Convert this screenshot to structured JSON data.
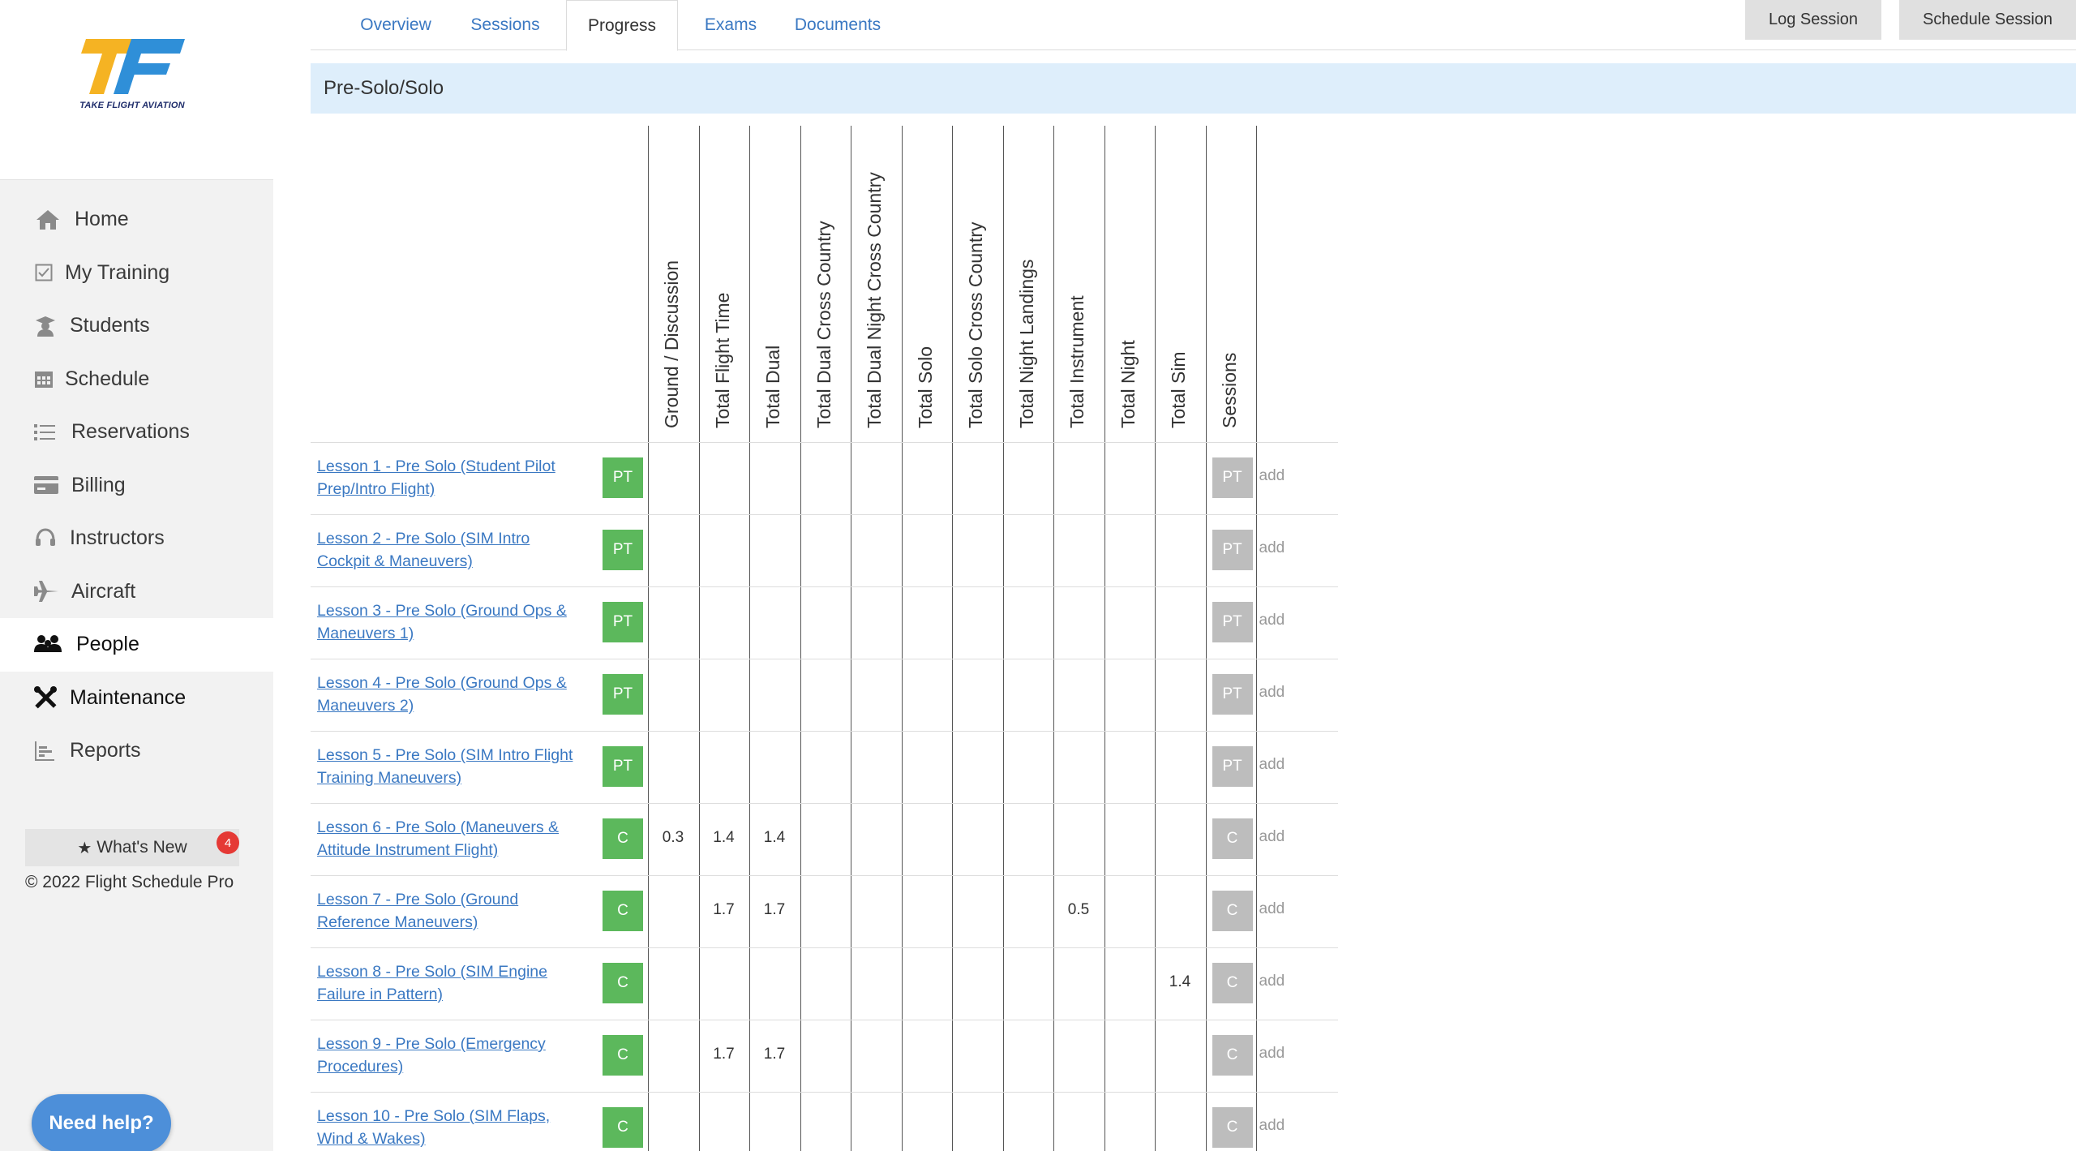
{
  "brand": {
    "logo_text": "TAKE FLIGHT AVIATION",
    "colors": {
      "gold": "#f5b323",
      "blue": "#2f8fd8"
    }
  },
  "sidebar": {
    "items": [
      {
        "label": "Home",
        "icon": "home-icon"
      },
      {
        "label": "My Training",
        "icon": "checkbox-icon"
      },
      {
        "label": "Students",
        "icon": "student-icon"
      },
      {
        "label": "Schedule",
        "icon": "calendar-icon"
      },
      {
        "label": "Reservations",
        "icon": "list-icon"
      },
      {
        "label": "Billing",
        "icon": "billing-card-icon"
      },
      {
        "label": "Instructors",
        "icon": "headset-icon"
      },
      {
        "label": "Aircraft",
        "icon": "airplane-icon"
      },
      {
        "label": "People",
        "icon": "people-icon",
        "active": true
      },
      {
        "label": "Maintenance",
        "icon": "tools-icon"
      },
      {
        "label": "Reports",
        "icon": "bar-chart-icon"
      }
    ],
    "whats_new": {
      "label": "What's New",
      "badge": "4"
    },
    "copyright": "© 2022 Flight Schedule Pro",
    "help": "Need help?"
  },
  "tabs": [
    {
      "label": "Overview"
    },
    {
      "label": "Sessions"
    },
    {
      "label": "Progress",
      "active": true
    },
    {
      "label": "Exams"
    },
    {
      "label": "Documents"
    }
  ],
  "actions": {
    "log_session": "Log Session",
    "schedule_session": "Schedule Session"
  },
  "section": {
    "title": "Pre-Solo/Solo"
  },
  "table": {
    "columns": [
      "Ground / Discussion",
      "Total Flight Time",
      "Total Dual",
      "Total Dual Cross Country",
      "Total Dual Night Cross Country",
      "Total Solo",
      "Total Solo Cross Country",
      "Total Night Landings",
      "Total Instrument",
      "Total Night",
      "Total Sim",
      "Sessions"
    ],
    "add_label": "add",
    "rows": [
      {
        "lesson": "Lesson 1 - Pre Solo (Student Pilot Prep/Intro Flight)",
        "status": "PT",
        "session": "PT",
        "values": [
          "",
          "",
          "",
          "",
          "",
          "",
          "",
          "",
          "",
          "",
          ""
        ]
      },
      {
        "lesson": "Lesson 2 - Pre Solo (SIM Intro Cockpit & Maneuvers)",
        "status": "PT",
        "session": "PT",
        "values": [
          "",
          "",
          "",
          "",
          "",
          "",
          "",
          "",
          "",
          "",
          ""
        ]
      },
      {
        "lesson": "Lesson 3 - Pre Solo (Ground Ops & Maneuvers 1)",
        "status": "PT",
        "session": "PT",
        "values": [
          "",
          "",
          "",
          "",
          "",
          "",
          "",
          "",
          "",
          "",
          ""
        ]
      },
      {
        "lesson": "Lesson 4 - Pre Solo (Ground Ops & Maneuvers 2)",
        "status": "PT",
        "session": "PT",
        "values": [
          "",
          "",
          "",
          "",
          "",
          "",
          "",
          "",
          "",
          "",
          ""
        ]
      },
      {
        "lesson": "Lesson 5 - Pre Solo (SIM Intro Flight Training Maneuvers)",
        "status": "PT",
        "session": "PT",
        "values": [
          "",
          "",
          "",
          "",
          "",
          "",
          "",
          "",
          "",
          "",
          ""
        ]
      },
      {
        "lesson": "Lesson 6 - Pre Solo (Maneuvers & Attitude Instrument Flight)",
        "status": "C",
        "session": "C",
        "values": [
          "0.3",
          "1.4",
          "1.4",
          "",
          "",
          "",
          "",
          "",
          "",
          "",
          ""
        ]
      },
      {
        "lesson": "Lesson 7 - Pre Solo (Ground Reference Maneuvers)",
        "status": "C",
        "session": "C",
        "values": [
          "",
          "1.7",
          "1.7",
          "",
          "",
          "",
          "",
          "",
          "0.5",
          "",
          ""
        ]
      },
      {
        "lesson": "Lesson 8 - Pre Solo (SIM Engine Failure in Pattern)",
        "status": "C",
        "session": "C",
        "values": [
          "",
          "",
          "",
          "",
          "",
          "",
          "",
          "",
          "",
          "",
          "1.4"
        ]
      },
      {
        "lesson": "Lesson 9 - Pre Solo (Emergency Procedures)",
        "status": "C",
        "session": "C",
        "values": [
          "",
          "1.7",
          "1.7",
          "",
          "",
          "",
          "",
          "",
          "",
          "",
          ""
        ]
      },
      {
        "lesson": "Lesson 10 - Pre Solo (SIM Flaps, Wind & Wakes)",
        "status": "C",
        "session": "C",
        "values": [
          "",
          "",
          "",
          "",
          "",
          "",
          "",
          "",
          "",
          "",
          ""
        ]
      }
    ]
  }
}
